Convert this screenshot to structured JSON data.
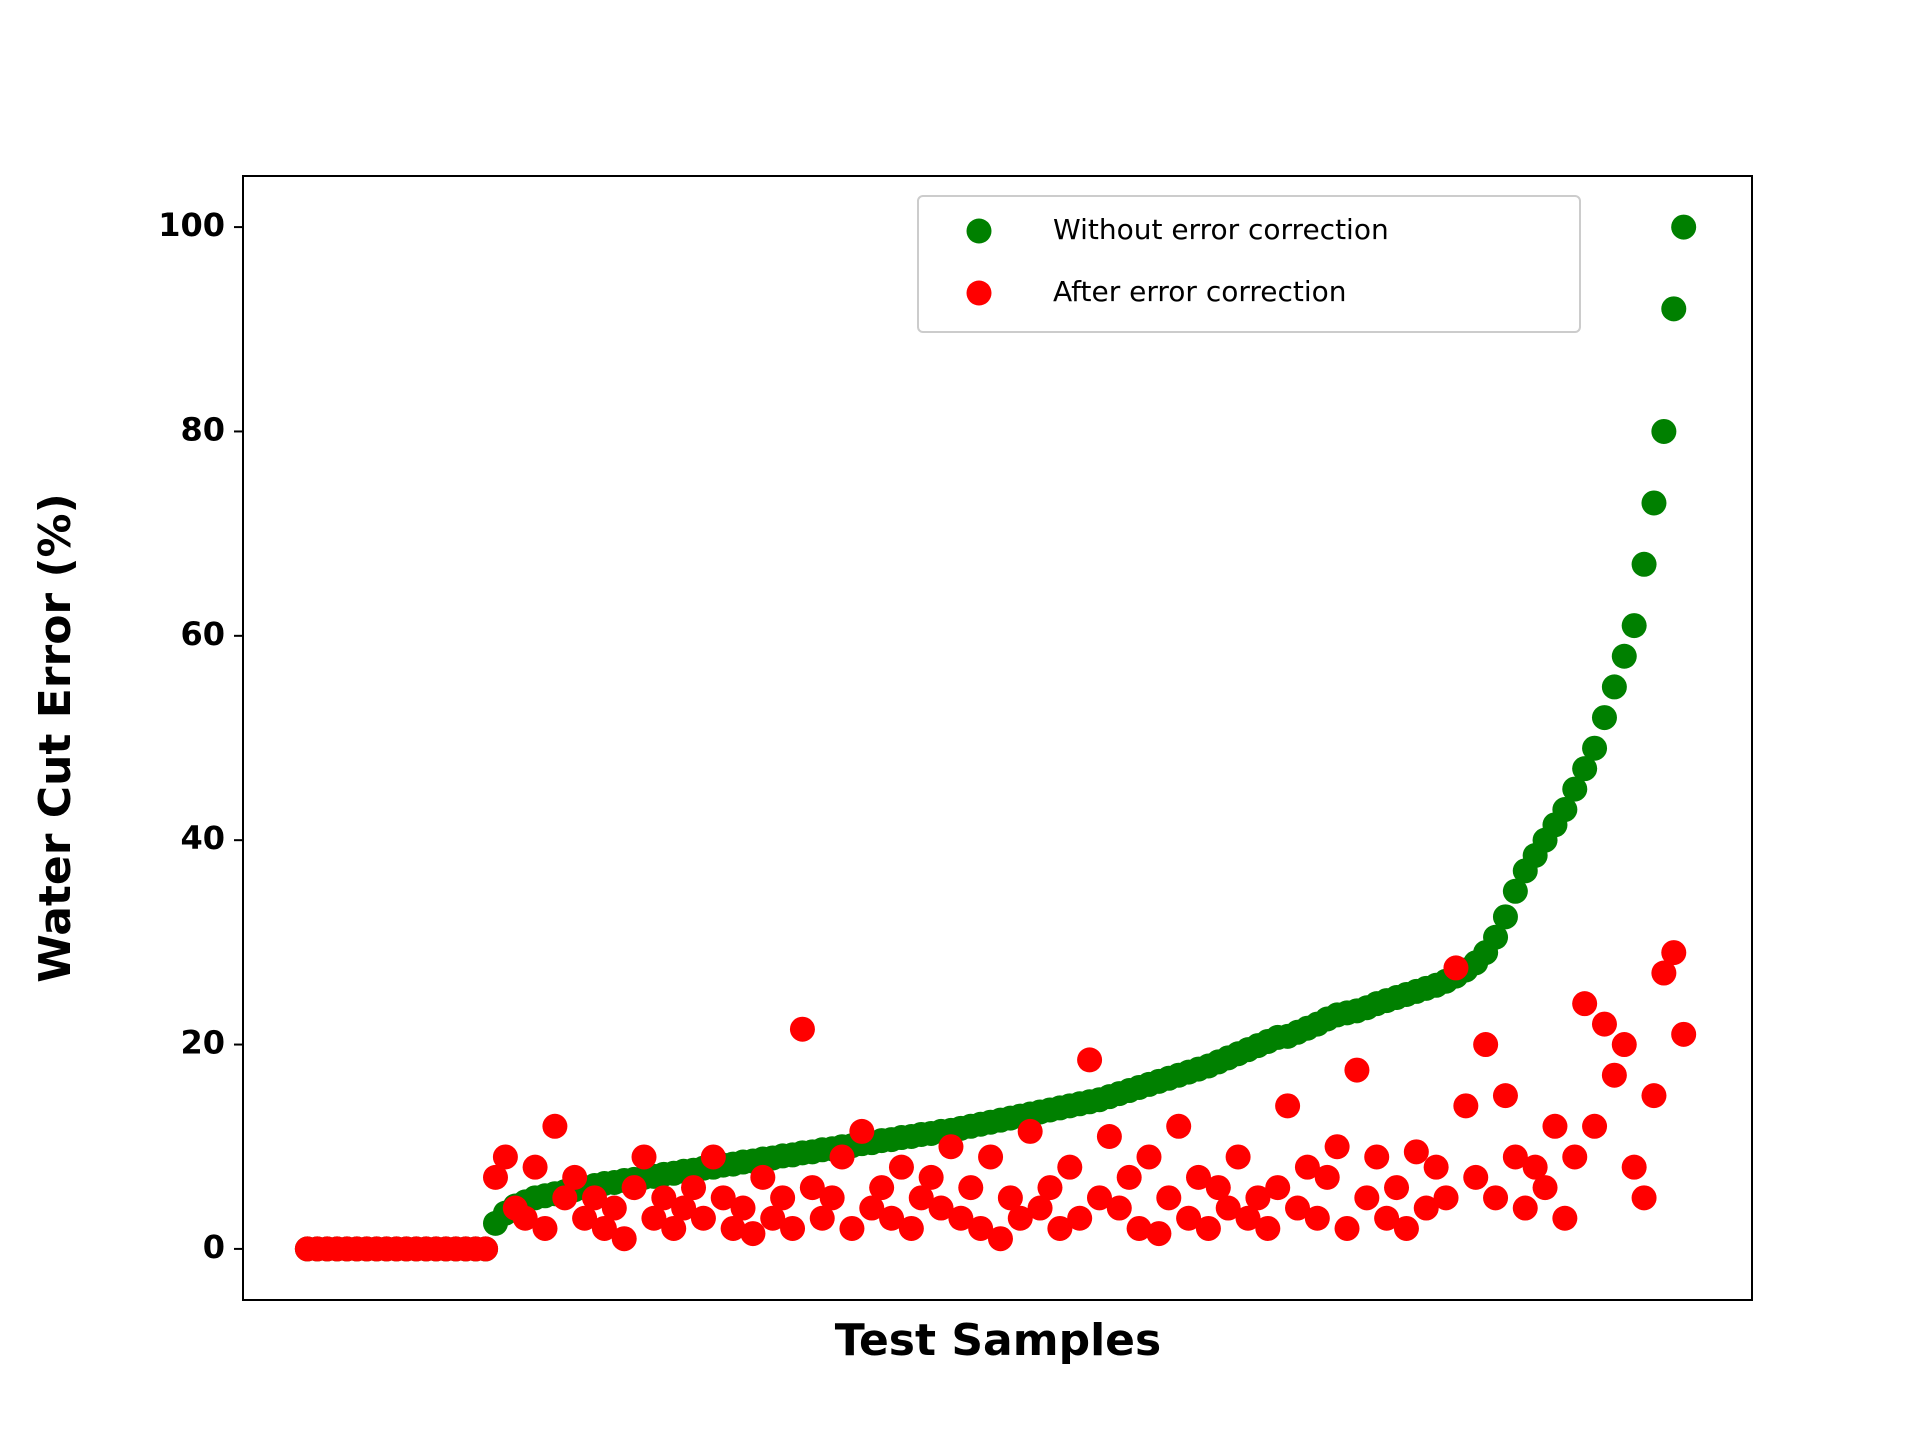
{
  "chart_data": {
    "type": "scatter",
    "xlabel": "Test Samples",
    "ylabel": "Water Cut Error (%)",
    "x": [
      1,
      2,
      3,
      4,
      5,
      6,
      7,
      8,
      9,
      10,
      11,
      12,
      13,
      14,
      15,
      16,
      17,
      18,
      19,
      20,
      21,
      22,
      23,
      24,
      25,
      26,
      27,
      28,
      29,
      30,
      31,
      32,
      33,
      34,
      35,
      36,
      37,
      38,
      39,
      40,
      41,
      42,
      43,
      44,
      45,
      46,
      47,
      48,
      49,
      50,
      51,
      52,
      53,
      54,
      55,
      56,
      57,
      58,
      59,
      60,
      61,
      62,
      63,
      64,
      65,
      66,
      67,
      68,
      69,
      70,
      71,
      72,
      73,
      74,
      75,
      76,
      77,
      78,
      79,
      80,
      81,
      82,
      83,
      84,
      85,
      86,
      87,
      88,
      89,
      90,
      91,
      92,
      93,
      94,
      95,
      96,
      97,
      98,
      99,
      100,
      101,
      102,
      103,
      104,
      105,
      106,
      107,
      108,
      109,
      110,
      111,
      112,
      113,
      114,
      115,
      116,
      117,
      118,
      119,
      120,
      121,
      122,
      123,
      124,
      125,
      126,
      127,
      128,
      129,
      130,
      131,
      132,
      133,
      134,
      135,
      136,
      137,
      138,
      139,
      140
    ],
    "series": [
      {
        "name": "Without error correction",
        "color": "#008000",
        "values": [
          0,
          0,
          0,
          0,
          0,
          0,
          0,
          0,
          0,
          0,
          0,
          0,
          0,
          0,
          0,
          0,
          0,
          0,
          0,
          2.5,
          3.5,
          4.2,
          4.6,
          5.0,
          5.2,
          5.4,
          5.6,
          5.8,
          6.0,
          6.2,
          6.4,
          6.5,
          6.7,
          6.8,
          7.0,
          7.1,
          7.3,
          7.4,
          7.6,
          7.7,
          7.9,
          8.0,
          8.2,
          8.3,
          8.5,
          8.6,
          8.8,
          8.9,
          9.1,
          9.2,
          9.4,
          9.5,
          9.7,
          9.8,
          10.0,
          10.1,
          10.3,
          10.4,
          10.6,
          10.7,
          10.9,
          11.0,
          11.2,
          11.3,
          11.5,
          11.6,
          11.8,
          12.0,
          12.2,
          12.4,
          12.6,
          12.8,
          13.0,
          13.2,
          13.4,
          13.6,
          13.8,
          14.0,
          14.2,
          14.4,
          14.6,
          14.9,
          15.2,
          15.5,
          15.8,
          16.1,
          16.4,
          16.7,
          17.0,
          17.3,
          17.6,
          17.9,
          18.3,
          18.7,
          19.1,
          19.5,
          19.9,
          20.3,
          20.7,
          20.8,
          21.2,
          21.6,
          22.0,
          22.5,
          22.9,
          23.1,
          23.3,
          23.6,
          24.0,
          24.3,
          24.6,
          24.9,
          25.2,
          25.5,
          25.8,
          26.2,
          26.7,
          27.3,
          28.0,
          29.0,
          30.5,
          32.5,
          35.0,
          37.0,
          38.5,
          40.0,
          41.5,
          43.0,
          45.0,
          47.0,
          49.0,
          52.0,
          55.0,
          58.0,
          61.0,
          67.0,
          73.0,
          80.0,
          92.0,
          100.0
        ]
      },
      {
        "name": "After error correction",
        "color": "#ff0000",
        "values": [
          0,
          0,
          0,
          0,
          0,
          0,
          0,
          0,
          0,
          0,
          0,
          0,
          0,
          0,
          0,
          0,
          0,
          0,
          0,
          7,
          9,
          4,
          3,
          8,
          2,
          12,
          5,
          7,
          3,
          5,
          2,
          4,
          1,
          6,
          9,
          3,
          5,
          2,
          4,
          6,
          3,
          9,
          5,
          2,
          4,
          1.5,
          7,
          3,
          5,
          2,
          21.5,
          6,
          3,
          5,
          9,
          2,
          11.5,
          4,
          6,
          3,
          8,
          2,
          5,
          7,
          4,
          10,
          3,
          6,
          2,
          9,
          1,
          5,
          3,
          11.5,
          4,
          6,
          2,
          8,
          3,
          18.5,
          5,
          11,
          4,
          7,
          2,
          9,
          1.5,
          5,
          12,
          3,
          7,
          2,
          6,
          4,
          9,
          3,
          5,
          2,
          6,
          14,
          4,
          8,
          3,
          7,
          10,
          2,
          17.5,
          5,
          9,
          3,
          6,
          2,
          9.5,
          4,
          8,
          5,
          27.5,
          14,
          7,
          20,
          5,
          15,
          9,
          4,
          8,
          6,
          12,
          3,
          9,
          24,
          12,
          22,
          17,
          20,
          8,
          5,
          15,
          27,
          29,
          21
        ]
      }
    ],
    "xlim": [
      -5.5,
      146.9
    ],
    "ylim": [
      -5,
      105
    ],
    "yticks": [
      0,
      20,
      40,
      60,
      80,
      100
    ],
    "grid": false,
    "legend": "upper right"
  }
}
